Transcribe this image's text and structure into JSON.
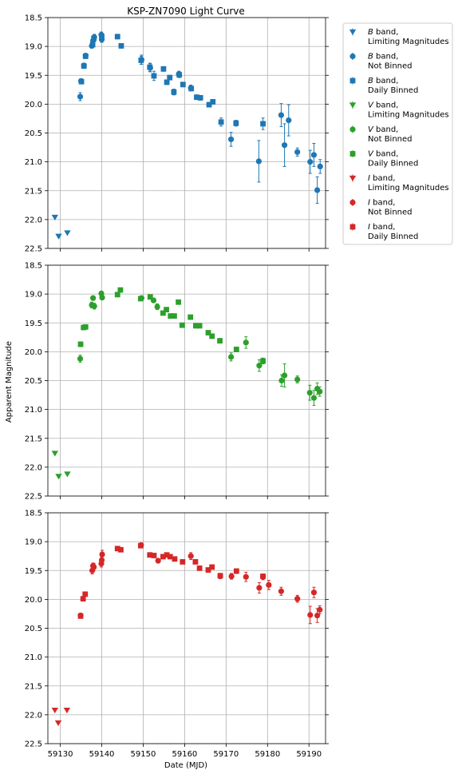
{
  "figure": {
    "title": "KSP-ZN7090 Light Curve",
    "xlabel": "Date (MJD)",
    "ylabel": "Apparent Magnitude"
  },
  "colors": {
    "B": "#1f77b4",
    "V": "#2ca02c",
    "I": "#d62728"
  },
  "legend": {
    "placement": "outside-right-top",
    "entries": [
      {
        "band": "B",
        "marker": "triangle-down",
        "line1": "band,",
        "line2": "Limiting Magnitudes"
      },
      {
        "band": "B",
        "marker": "circle",
        "line1": "band,",
        "line2": "Not Binned"
      },
      {
        "band": "B",
        "marker": "square",
        "line1": "band,",
        "line2": "Daily Binned"
      },
      {
        "band": "V",
        "marker": "triangle-down",
        "line1": "band,",
        "line2": "Limiting Magnitudes"
      },
      {
        "band": "V",
        "marker": "circle",
        "line1": "band,",
        "line2": "Not Binned"
      },
      {
        "band": "V",
        "marker": "square",
        "line1": "band,",
        "line2": "Daily Binned"
      },
      {
        "band": "I",
        "marker": "triangle-down",
        "line1": "band,",
        "line2": "Limiting Magnitudes"
      },
      {
        "band": "I",
        "marker": "circle",
        "line1": "band,",
        "line2": "Not Binned"
      },
      {
        "band": "I",
        "marker": "square",
        "line1": "band,",
        "line2": "Daily Binned"
      }
    ]
  },
  "chart_data": [
    {
      "type": "scatter",
      "band": "B",
      "xlim": [
        59127,
        59194
      ],
      "ylim": [
        22.5,
        18.5
      ],
      "y_inverted": true,
      "grid": true,
      "xticks": [
        59130,
        59140,
        59150,
        59160,
        59170,
        59180,
        59190
      ],
      "yticks": [
        18.5,
        19.0,
        19.5,
        20.0,
        20.5,
        21.0,
        21.5,
        22.0,
        22.5
      ],
      "series": [
        {
          "name": "B band, Limiting Magnitudes",
          "marker": "triangle-down",
          "points": [
            {
              "x": 59128.7,
              "y": 21.96
            },
            {
              "x": 59129.6,
              "y": 22.29
            },
            {
              "x": 59131.7,
              "y": 22.23
            }
          ]
        },
        {
          "name": "B band, Not Binned",
          "marker": "circle",
          "points": [
            {
              "x": 59134.8,
              "y": 19.87,
              "err": 0.07
            },
            {
              "x": 59135.0,
              "y": 19.6,
              "err": 0.04
            },
            {
              "x": 59135.7,
              "y": 19.33,
              "err": 0.04
            },
            {
              "x": 59136.1,
              "y": 19.16,
              "err": 0.04
            },
            {
              "x": 59137.6,
              "y": 18.99,
              "err": 0.04
            },
            {
              "x": 59137.9,
              "y": 18.9,
              "err": 0.05
            },
            {
              "x": 59138.2,
              "y": 18.84,
              "err": 0.05
            },
            {
              "x": 59139.9,
              "y": 18.8,
              "err": 0.05
            },
            {
              "x": 59140.0,
              "y": 18.88,
              "err": 0.05
            },
            {
              "x": 59149.6,
              "y": 19.23,
              "err": 0.08
            },
            {
              "x": 59151.7,
              "y": 19.37,
              "err": 0.07
            },
            {
              "x": 59158.6,
              "y": 19.48,
              "err": 0.05
            },
            {
              "x": 59161.5,
              "y": 19.72,
              "err": 0.05
            },
            {
              "x": 59171.2,
              "y": 20.61,
              "err": 0.12
            },
            {
              "x": 59177.9,
              "y": 20.99,
              "err": 0.36
            },
            {
              "x": 59183.3,
              "y": 20.19,
              "err": 0.2
            },
            {
              "x": 59184.1,
              "y": 20.71,
              "err": 0.37
            },
            {
              "x": 59185.1,
              "y": 20.28,
              "err": 0.27
            },
            {
              "x": 59187.2,
              "y": 20.83,
              "err": 0.07
            },
            {
              "x": 59190.3,
              "y": 21.0,
              "err": 0.2
            },
            {
              "x": 59191.2,
              "y": 20.88,
              "err": 0.2
            },
            {
              "x": 59192.0,
              "y": 21.49,
              "err": 0.23
            },
            {
              "x": 59192.7,
              "y": 21.08,
              "err": 0.12
            }
          ]
        },
        {
          "name": "B band, Daily Binned",
          "marker": "square",
          "points": [
            {
              "x": 59135.1,
              "y": 19.61,
              "err": 0.04
            },
            {
              "x": 59135.7,
              "y": 19.34,
              "err": 0.04
            },
            {
              "x": 59136.1,
              "y": 19.17,
              "err": 0.04
            },
            {
              "x": 59137.8,
              "y": 18.97,
              "err": 0.04
            },
            {
              "x": 59138.1,
              "y": 18.86,
              "err": 0.05
            },
            {
              "x": 59140.0,
              "y": 18.83,
              "err": 0.05
            },
            {
              "x": 59143.8,
              "y": 18.83,
              "err": 0.04
            },
            {
              "x": 59144.7,
              "y": 18.99,
              "err": 0.04
            },
            {
              "x": 59149.5,
              "y": 19.24,
              "err": 0.07
            },
            {
              "x": 59151.6,
              "y": 19.36,
              "err": 0.07
            },
            {
              "x": 59152.6,
              "y": 19.51,
              "err": 0.08
            },
            {
              "x": 59154.9,
              "y": 19.39,
              "err": 0.04
            },
            {
              "x": 59155.7,
              "y": 19.62,
              "err": 0.04
            },
            {
              "x": 59156.4,
              "y": 19.54,
              "err": 0.04
            },
            {
              "x": 59157.4,
              "y": 19.79,
              "err": 0.05
            },
            {
              "x": 59158.7,
              "y": 19.49,
              "err": 0.05
            },
            {
              "x": 59159.6,
              "y": 19.66,
              "err": 0.04
            },
            {
              "x": 59161.6,
              "y": 19.73,
              "err": 0.04
            },
            {
              "x": 59162.9,
              "y": 19.88,
              "err": 0.04
            },
            {
              "x": 59163.8,
              "y": 19.89,
              "err": 0.04
            },
            {
              "x": 59165.9,
              "y": 20.01,
              "err": 0.04
            },
            {
              "x": 59166.8,
              "y": 19.96,
              "err": 0.04
            },
            {
              "x": 59168.8,
              "y": 20.31,
              "err": 0.07
            },
            {
              "x": 59172.4,
              "y": 20.33,
              "err": 0.05
            },
            {
              "x": 59178.9,
              "y": 20.34,
              "err": 0.1
            }
          ]
        }
      ]
    },
    {
      "type": "scatter",
      "band": "V",
      "xlim": [
        59127,
        59194
      ],
      "ylim": [
        22.5,
        18.5
      ],
      "y_inverted": true,
      "grid": true,
      "xticks": [
        59130,
        59140,
        59150,
        59160,
        59170,
        59180,
        59190
      ],
      "yticks": [
        18.5,
        19.0,
        19.5,
        20.0,
        20.5,
        21.0,
        21.5,
        22.0,
        22.5
      ],
      "series": [
        {
          "name": "V band, Limiting Magnitudes",
          "marker": "triangle-down",
          "points": [
            {
              "x": 59128.7,
              "y": 21.76
            },
            {
              "x": 59129.6,
              "y": 22.16
            },
            {
              "x": 59131.7,
              "y": 22.12
            }
          ]
        },
        {
          "name": "V band, Not Binned",
          "marker": "circle",
          "points": [
            {
              "x": 59134.8,
              "y": 20.12,
              "err": 0.06
            },
            {
              "x": 59137.6,
              "y": 19.19,
              "err": 0.05
            },
            {
              "x": 59137.9,
              "y": 19.07,
              "err": 0.04
            },
            {
              "x": 59138.2,
              "y": 19.21,
              "err": 0.05
            },
            {
              "x": 59139.9,
              "y": 18.99,
              "err": 0.04
            },
            {
              "x": 59140.1,
              "y": 19.06,
              "err": 0.04
            },
            {
              "x": 59149.6,
              "y": 19.07,
              "err": 0.04
            },
            {
              "x": 59152.5,
              "y": 19.11,
              "err": 0.04
            },
            {
              "x": 59153.4,
              "y": 19.22,
              "err": 0.05
            },
            {
              "x": 59171.2,
              "y": 20.09,
              "err": 0.07
            },
            {
              "x": 59174.8,
              "y": 19.84,
              "err": 0.1
            },
            {
              "x": 59178.0,
              "y": 20.24,
              "err": 0.1
            },
            {
              "x": 59183.4,
              "y": 20.5,
              "err": 0.1
            },
            {
              "x": 59184.1,
              "y": 20.41,
              "err": 0.2
            },
            {
              "x": 59187.2,
              "y": 20.48,
              "err": 0.06
            },
            {
              "x": 59190.2,
              "y": 20.71,
              "err": 0.13
            },
            {
              "x": 59191.2,
              "y": 20.8,
              "err": 0.13
            },
            {
              "x": 59192.0,
              "y": 20.64,
              "err": 0.1
            },
            {
              "x": 59192.6,
              "y": 20.69,
              "err": 0.08
            }
          ]
        },
        {
          "name": "V band, Daily Binned",
          "marker": "square",
          "points": [
            {
              "x": 59134.9,
              "y": 19.87,
              "err": 0.04
            },
            {
              "x": 59135.6,
              "y": 19.58,
              "err": 0.03
            },
            {
              "x": 59136.1,
              "y": 19.57,
              "err": 0.03
            },
            {
              "x": 59143.8,
              "y": 19.01,
              "err": 0.03
            },
            {
              "x": 59144.5,
              "y": 18.93,
              "err": 0.03
            },
            {
              "x": 59149.4,
              "y": 19.08,
              "err": 0.03
            },
            {
              "x": 59151.7,
              "y": 19.05,
              "err": 0.03
            },
            {
              "x": 59154.8,
              "y": 19.33,
              "err": 0.03
            },
            {
              "x": 59155.6,
              "y": 19.27,
              "err": 0.03
            },
            {
              "x": 59156.6,
              "y": 19.38,
              "err": 0.03
            },
            {
              "x": 59157.5,
              "y": 19.38,
              "err": 0.03
            },
            {
              "x": 59158.5,
              "y": 19.14,
              "err": 0.03
            },
            {
              "x": 59159.4,
              "y": 19.54,
              "err": 0.03
            },
            {
              "x": 59161.4,
              "y": 19.4,
              "err": 0.03
            },
            {
              "x": 59162.7,
              "y": 19.55,
              "err": 0.03
            },
            {
              "x": 59163.6,
              "y": 19.55,
              "err": 0.03
            },
            {
              "x": 59165.7,
              "y": 19.67,
              "err": 0.03
            },
            {
              "x": 59166.6,
              "y": 19.73,
              "err": 0.03
            },
            {
              "x": 59168.5,
              "y": 19.81,
              "err": 0.04
            },
            {
              "x": 59172.5,
              "y": 19.96,
              "err": 0.04
            },
            {
              "x": 59178.9,
              "y": 20.16,
              "err": 0.05
            }
          ]
        }
      ]
    },
    {
      "type": "scatter",
      "band": "I",
      "xlim": [
        59127,
        59194
      ],
      "ylim": [
        22.5,
        18.5
      ],
      "y_inverted": true,
      "grid": true,
      "xticks": [
        59130,
        59140,
        59150,
        59160,
        59170,
        59180,
        59190
      ],
      "yticks": [
        18.5,
        19.0,
        19.5,
        20.0,
        20.5,
        21.0,
        21.5,
        22.0,
        22.5
      ],
      "series": [
        {
          "name": "I band, Limiting Magnitudes",
          "marker": "triangle-down",
          "points": [
            {
              "x": 59128.7,
              "y": 21.92
            },
            {
              "x": 59129.5,
              "y": 22.14
            },
            {
              "x": 59131.6,
              "y": 21.92
            }
          ]
        },
        {
          "name": "I band, Not Binned",
          "marker": "circle",
          "points": [
            {
              "x": 59134.9,
              "y": 20.28,
              "err": 0.04
            },
            {
              "x": 59137.7,
              "y": 19.5,
              "err": 0.06
            },
            {
              "x": 59137.9,
              "y": 19.42,
              "err": 0.05
            },
            {
              "x": 59138.1,
              "y": 19.44,
              "err": 0.06
            },
            {
              "x": 59139.9,
              "y": 19.38,
              "err": 0.06
            },
            {
              "x": 59140.0,
              "y": 19.32,
              "err": 0.05
            },
            {
              "x": 59140.1,
              "y": 19.22,
              "err": 0.07
            },
            {
              "x": 59149.5,
              "y": 19.06,
              "err": 0.04
            },
            {
              "x": 59153.6,
              "y": 19.33,
              "err": 0.04
            },
            {
              "x": 59161.5,
              "y": 19.25,
              "err": 0.06
            },
            {
              "x": 59168.6,
              "y": 19.6,
              "err": 0.04
            },
            {
              "x": 59171.3,
              "y": 19.6,
              "err": 0.05
            },
            {
              "x": 59174.8,
              "y": 19.61,
              "err": 0.08
            },
            {
              "x": 59178.0,
              "y": 19.8,
              "err": 0.09
            },
            {
              "x": 59178.9,
              "y": 19.61,
              "err": 0.05
            },
            {
              "x": 59180.3,
              "y": 19.75,
              "err": 0.08
            },
            {
              "x": 59183.3,
              "y": 19.86,
              "err": 0.07
            },
            {
              "x": 59187.2,
              "y": 19.99,
              "err": 0.06
            },
            {
              "x": 59190.3,
              "y": 20.27,
              "err": 0.15
            },
            {
              "x": 59191.2,
              "y": 19.88,
              "err": 0.09
            },
            {
              "x": 59192.0,
              "y": 20.28,
              "err": 0.12
            },
            {
              "x": 59192.6,
              "y": 20.18,
              "err": 0.07
            }
          ]
        },
        {
          "name": "I band, Daily Binned",
          "marker": "square",
          "points": [
            {
              "x": 59134.9,
              "y": 20.29,
              "err": 0.03
            },
            {
              "x": 59135.5,
              "y": 19.99,
              "err": 0.03
            },
            {
              "x": 59136.0,
              "y": 19.91,
              "err": 0.03
            },
            {
              "x": 59143.8,
              "y": 19.12,
              "err": 0.03
            },
            {
              "x": 59144.6,
              "y": 19.14,
              "err": 0.03
            },
            {
              "x": 59149.4,
              "y": 19.07,
              "err": 0.03
            },
            {
              "x": 59151.6,
              "y": 19.23,
              "err": 0.03
            },
            {
              "x": 59152.6,
              "y": 19.24,
              "err": 0.03
            },
            {
              "x": 59154.8,
              "y": 19.26,
              "err": 0.03
            },
            {
              "x": 59155.7,
              "y": 19.23,
              "err": 0.03
            },
            {
              "x": 59156.5,
              "y": 19.26,
              "err": 0.03
            },
            {
              "x": 59157.6,
              "y": 19.3,
              "err": 0.03
            },
            {
              "x": 59159.5,
              "y": 19.35,
              "err": 0.03
            },
            {
              "x": 59162.6,
              "y": 19.35,
              "err": 0.03
            },
            {
              "x": 59163.6,
              "y": 19.46,
              "err": 0.03
            },
            {
              "x": 59165.7,
              "y": 19.49,
              "err": 0.03
            },
            {
              "x": 59166.6,
              "y": 19.44,
              "err": 0.03
            },
            {
              "x": 59168.6,
              "y": 19.59,
              "err": 0.04
            },
            {
              "x": 59172.5,
              "y": 19.51,
              "err": 0.04
            },
            {
              "x": 59178.9,
              "y": 19.6,
              "err": 0.04
            }
          ]
        }
      ]
    }
  ]
}
